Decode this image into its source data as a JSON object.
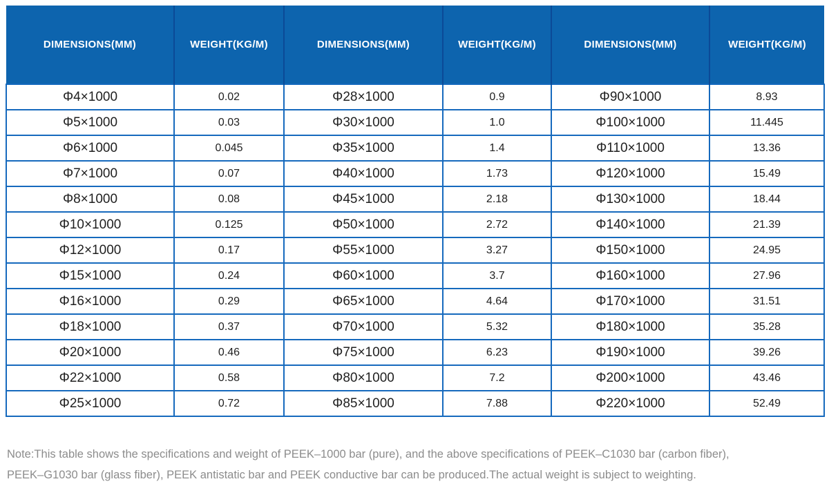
{
  "table": {
    "headers": [
      "DIMENSIONS(MM)",
      "WEIGHT(KG/M)",
      "DIMENSIONS(MM)",
      "WEIGHT(KG/M)",
      "DIMENSIONS(MM)",
      "WEIGHT(KG/M)"
    ],
    "rows": [
      [
        "Φ4×1000",
        "0.02",
        "Φ28×1000",
        "0.9",
        "Φ90×1000",
        "8.93"
      ],
      [
        "Φ5×1000",
        "0.03",
        "Φ30×1000",
        "1.0",
        "Φ100×1000",
        "11.445"
      ],
      [
        "Φ6×1000",
        "0.045",
        "Φ35×1000",
        "1.4",
        "Φ110×1000",
        "13.36"
      ],
      [
        "Φ7×1000",
        "0.07",
        "Φ40×1000",
        "1.73",
        "Φ120×1000",
        "15.49"
      ],
      [
        "Φ8×1000",
        "0.08",
        "Φ45×1000",
        "2.18",
        "Φ130×1000",
        "18.44"
      ],
      [
        "Φ10×1000",
        "0.125",
        "Φ50×1000",
        "2.72",
        "Φ140×1000",
        "21.39"
      ],
      [
        "Φ12×1000",
        "0.17",
        "Φ55×1000",
        "3.27",
        "Φ150×1000",
        "24.95"
      ],
      [
        "Φ15×1000",
        "0.24",
        "Φ60×1000",
        "3.7",
        "Φ160×1000",
        "27.96"
      ],
      [
        "Φ16×1000",
        "0.29",
        "Φ65×1000",
        "4.64",
        "Φ170×1000",
        "31.51"
      ],
      [
        "Φ18×1000",
        "0.37",
        "Φ70×1000",
        "5.32",
        "Φ180×1000",
        "35.28"
      ],
      [
        "Φ20×1000",
        "0.46",
        "Φ75×1000",
        "6.23",
        "Φ190×1000",
        "39.26"
      ],
      [
        "Φ22×1000",
        "0.58",
        "Φ80×1000",
        "7.2",
        "Φ200×1000",
        "43.46"
      ],
      [
        "Φ25×1000",
        "0.72",
        "Φ85×1000",
        "7.88",
        "Φ220×1000",
        "52.49"
      ]
    ]
  },
  "note": {
    "line1": "Note:This table shows the specifications and weight of PEEK–1000 bar (pure), and the above specifications of PEEK–C1030 bar (carbon fiber),",
    "line2": "PEEK–G1030 bar (glass fiber), PEEK antistatic bar and PEEK conductive bar can be produced.The actual weight is subject to weighting."
  },
  "colors": {
    "header_bg": "#0d64ae",
    "header_divider": "#0b4a97",
    "grid_border": "#1569bd",
    "note_text": "#8c8c8c"
  }
}
